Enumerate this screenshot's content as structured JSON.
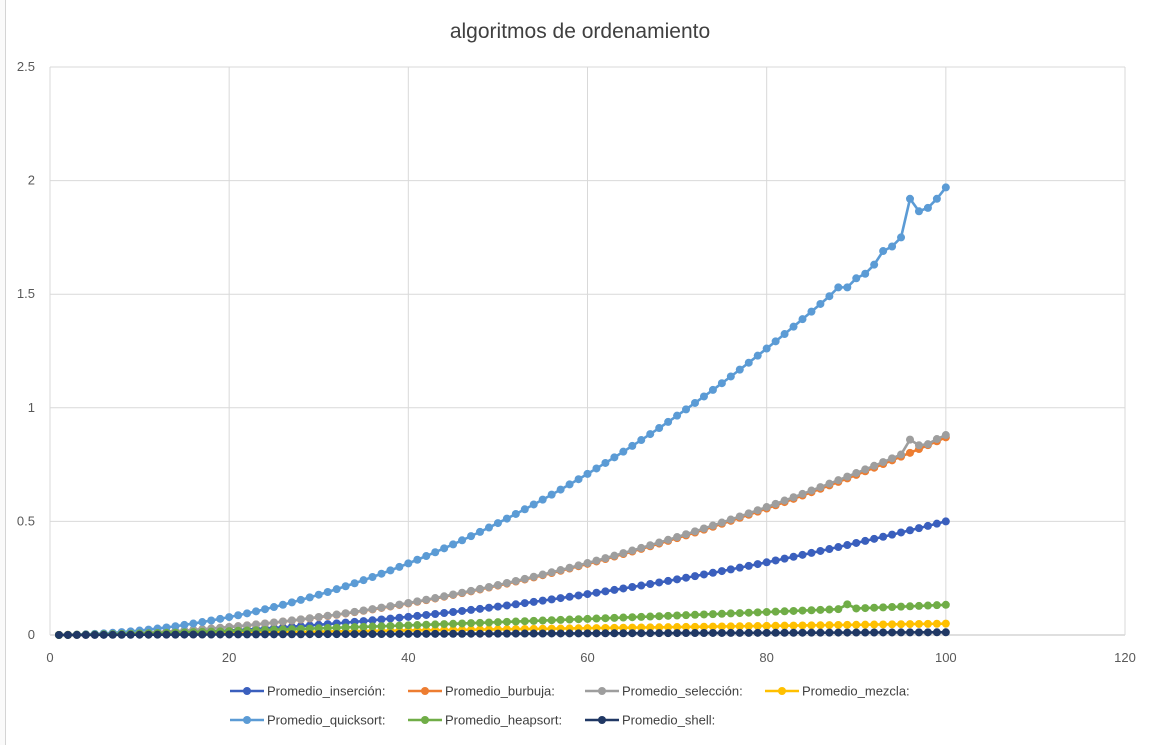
{
  "chart_data": {
    "type": "line",
    "title": "algoritmos de ordenamiento",
    "xlabel": "",
    "ylabel": "",
    "xlim": [
      0,
      120
    ],
    "ylim": [
      0,
      2.5
    ],
    "x_ticks": [
      "0",
      "20",
      "40",
      "60",
      "80",
      "100",
      "120"
    ],
    "y_ticks": [
      "0",
      "0.5",
      "1",
      "1.5",
      "2",
      "2.5"
    ],
    "grid": true,
    "legend_position": "bottom",
    "series": [
      {
        "name": "Promedio_inserción:",
        "color": "#3a5fbd",
        "model": {
          "type": "power",
          "a": 5e-05,
          "p": 2
        }
      },
      {
        "name": "Promedio_burbuja:",
        "color": "#ed7d31",
        "model": {
          "type": "power",
          "a": 8.7e-05,
          "p": 2
        }
      },
      {
        "name": "Promedio_selección:",
        "color": "#9e9e9e",
        "model": {
          "type": "power",
          "a": 8.8e-05,
          "p": 2
        },
        "overrides": {
          "96": 0.86,
          "97": 0.835,
          "98": 0.84
        }
      },
      {
        "name": "Promedio_mezcla:",
        "color": "#ffc000",
        "model": {
          "type": "linear",
          "a": 0.0005
        }
      },
      {
        "name": "Promedio_quicksort:",
        "color": "#5b9bd5",
        "model": {
          "type": "power",
          "a": 0.000197,
          "p": 2
        },
        "overrides": {
          "88": 1.53,
          "89": 1.53,
          "90": 1.57,
          "91": 1.59,
          "92": 1.63,
          "93": 1.69,
          "94": 1.71,
          "95": 1.75,
          "96": 1.92,
          "97": 1.865,
          "98": 1.88,
          "99": 1.92,
          "100": 1.97
        }
      },
      {
        "name": "Promedio_heapsort:",
        "color": "#70ad47",
        "model": {
          "type": "nlogn",
          "a": 0.0002
        },
        "overrides": {
          "89": 0.135
        }
      },
      {
        "name": "Promedio_shell:",
        "color": "#203864",
        "model": {
          "type": "linear",
          "a": 0.00012
        }
      }
    ],
    "x_range": [
      1,
      100
    ]
  }
}
